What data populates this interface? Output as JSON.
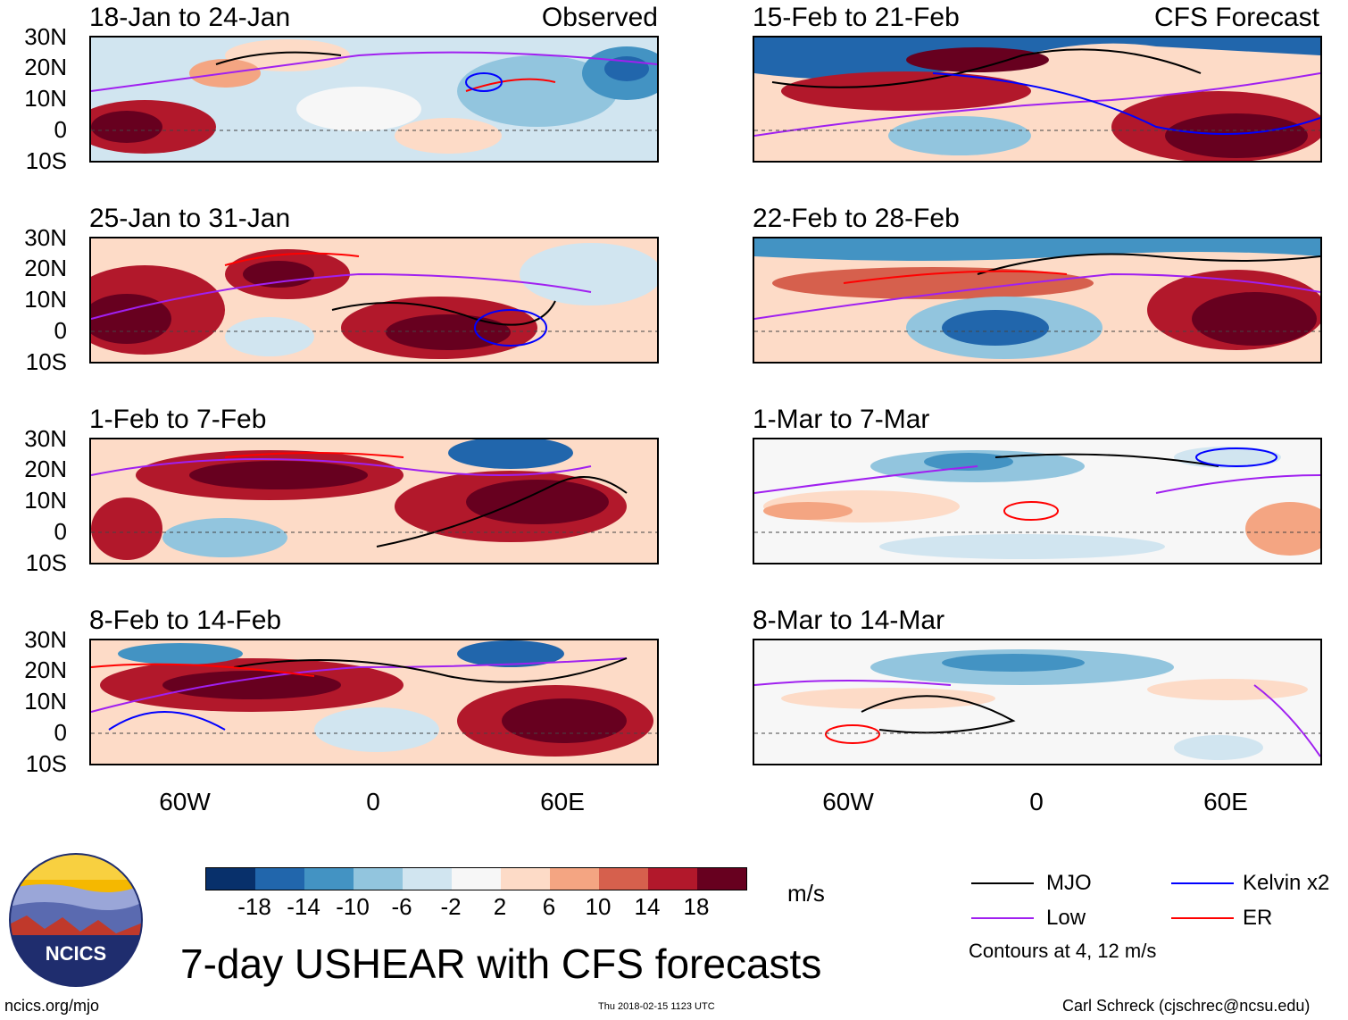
{
  "panels_left": [
    {
      "title": "18-Jan to 24-Jan",
      "tag": "Observed"
    },
    {
      "title": "25-Jan to 31-Jan",
      "tag": ""
    },
    {
      "title": "1-Feb to 7-Feb",
      "tag": ""
    },
    {
      "title": "8-Feb to 14-Feb",
      "tag": ""
    }
  ],
  "panels_right": [
    {
      "title": "15-Feb to 21-Feb",
      "tag": "CFS Forecast"
    },
    {
      "title": "22-Feb to 28-Feb",
      "tag": ""
    },
    {
      "title": "1-Mar to 7-Mar",
      "tag": ""
    },
    {
      "title": "8-Mar to 14-Mar",
      "tag": ""
    }
  ],
  "lat_labels": [
    "30N",
    "20N",
    "10N",
    "0",
    "10S"
  ],
  "lon_labels": [
    "60W",
    "0",
    "60E"
  ],
  "colorbar": {
    "ticks": [
      "-18",
      "-14",
      "-10",
      "-6",
      "-2",
      "2",
      "6",
      "10",
      "14",
      "18"
    ],
    "colors": [
      "#08306b",
      "#2166ac",
      "#4393c3",
      "#92c5de",
      "#d1e5f0",
      "#f7f7f7",
      "#fddbc7",
      "#f4a582",
      "#d6604d",
      "#b2182b",
      "#67001f"
    ],
    "unit": "m/s"
  },
  "legend": {
    "items": [
      {
        "label": "MJO",
        "color": "#000000"
      },
      {
        "label": "Kelvin x2",
        "color": "#0000ff"
      },
      {
        "label": "Low",
        "color": "#a020f0"
      },
      {
        "label": "ER",
        "color": "#ff0000"
      }
    ],
    "note": "Contours at 4, 12 m/s"
  },
  "main_title": "7-day USHEAR with CFS forecasts",
  "footer": {
    "website": "ncics.org/mjo",
    "timestamp": "Thu 2018-02-15 1123 UTC",
    "credit": "Carl Schreck (cjschrec@ncsu.edu)"
  },
  "logo": {
    "text": "NCICS"
  }
}
